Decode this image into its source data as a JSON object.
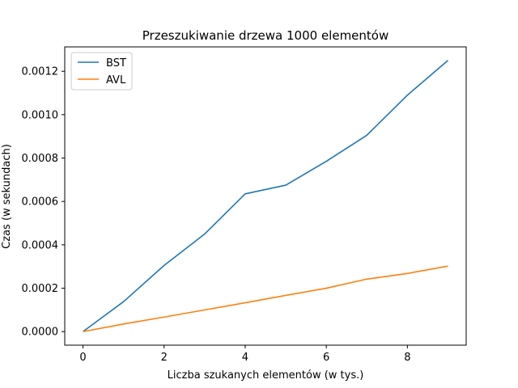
{
  "chart_data": {
    "type": "line",
    "title": "Przeszukiwanie drzewa 1000 elementów",
    "xlabel": "Liczba szukanych elementów (w tys.)",
    "ylabel": "Czas (w sekundach)",
    "xlim": [
      -0.45,
      9.45
    ],
    "ylim": [
      -6.25e-05,
      0.0013125
    ],
    "x_ticks": [
      0,
      2,
      4,
      6,
      8
    ],
    "x_tick_labels": [
      "0",
      "2",
      "4",
      "6",
      "8"
    ],
    "y_ticks": [
      0,
      0.0002,
      0.0004,
      0.0006,
      0.0008,
      0.001,
      0.0012
    ],
    "y_tick_labels": [
      "0.0000",
      "0.0002",
      "0.0004",
      "0.0006",
      "0.0008",
      "0.0010",
      "0.0012"
    ],
    "grid": false,
    "legend_position": "top-left",
    "x": [
      0,
      1,
      2,
      3,
      4,
      5,
      6,
      7,
      8,
      9
    ],
    "series": [
      {
        "name": "BST",
        "color": "#1f77b4",
        "values": [
          0.0,
          0.000138,
          0.000305,
          0.00045,
          0.000635,
          0.000675,
          0.000785,
          0.000905,
          0.00109,
          0.00125
        ]
      },
      {
        "name": "AVL",
        "color": "#ff7f0e",
        "values": [
          0.0,
          3.5e-05,
          6.7e-05,
          0.0001,
          0.000133,
          0.000167,
          0.0002,
          0.000242,
          0.000268,
          0.000302
        ]
      }
    ]
  }
}
